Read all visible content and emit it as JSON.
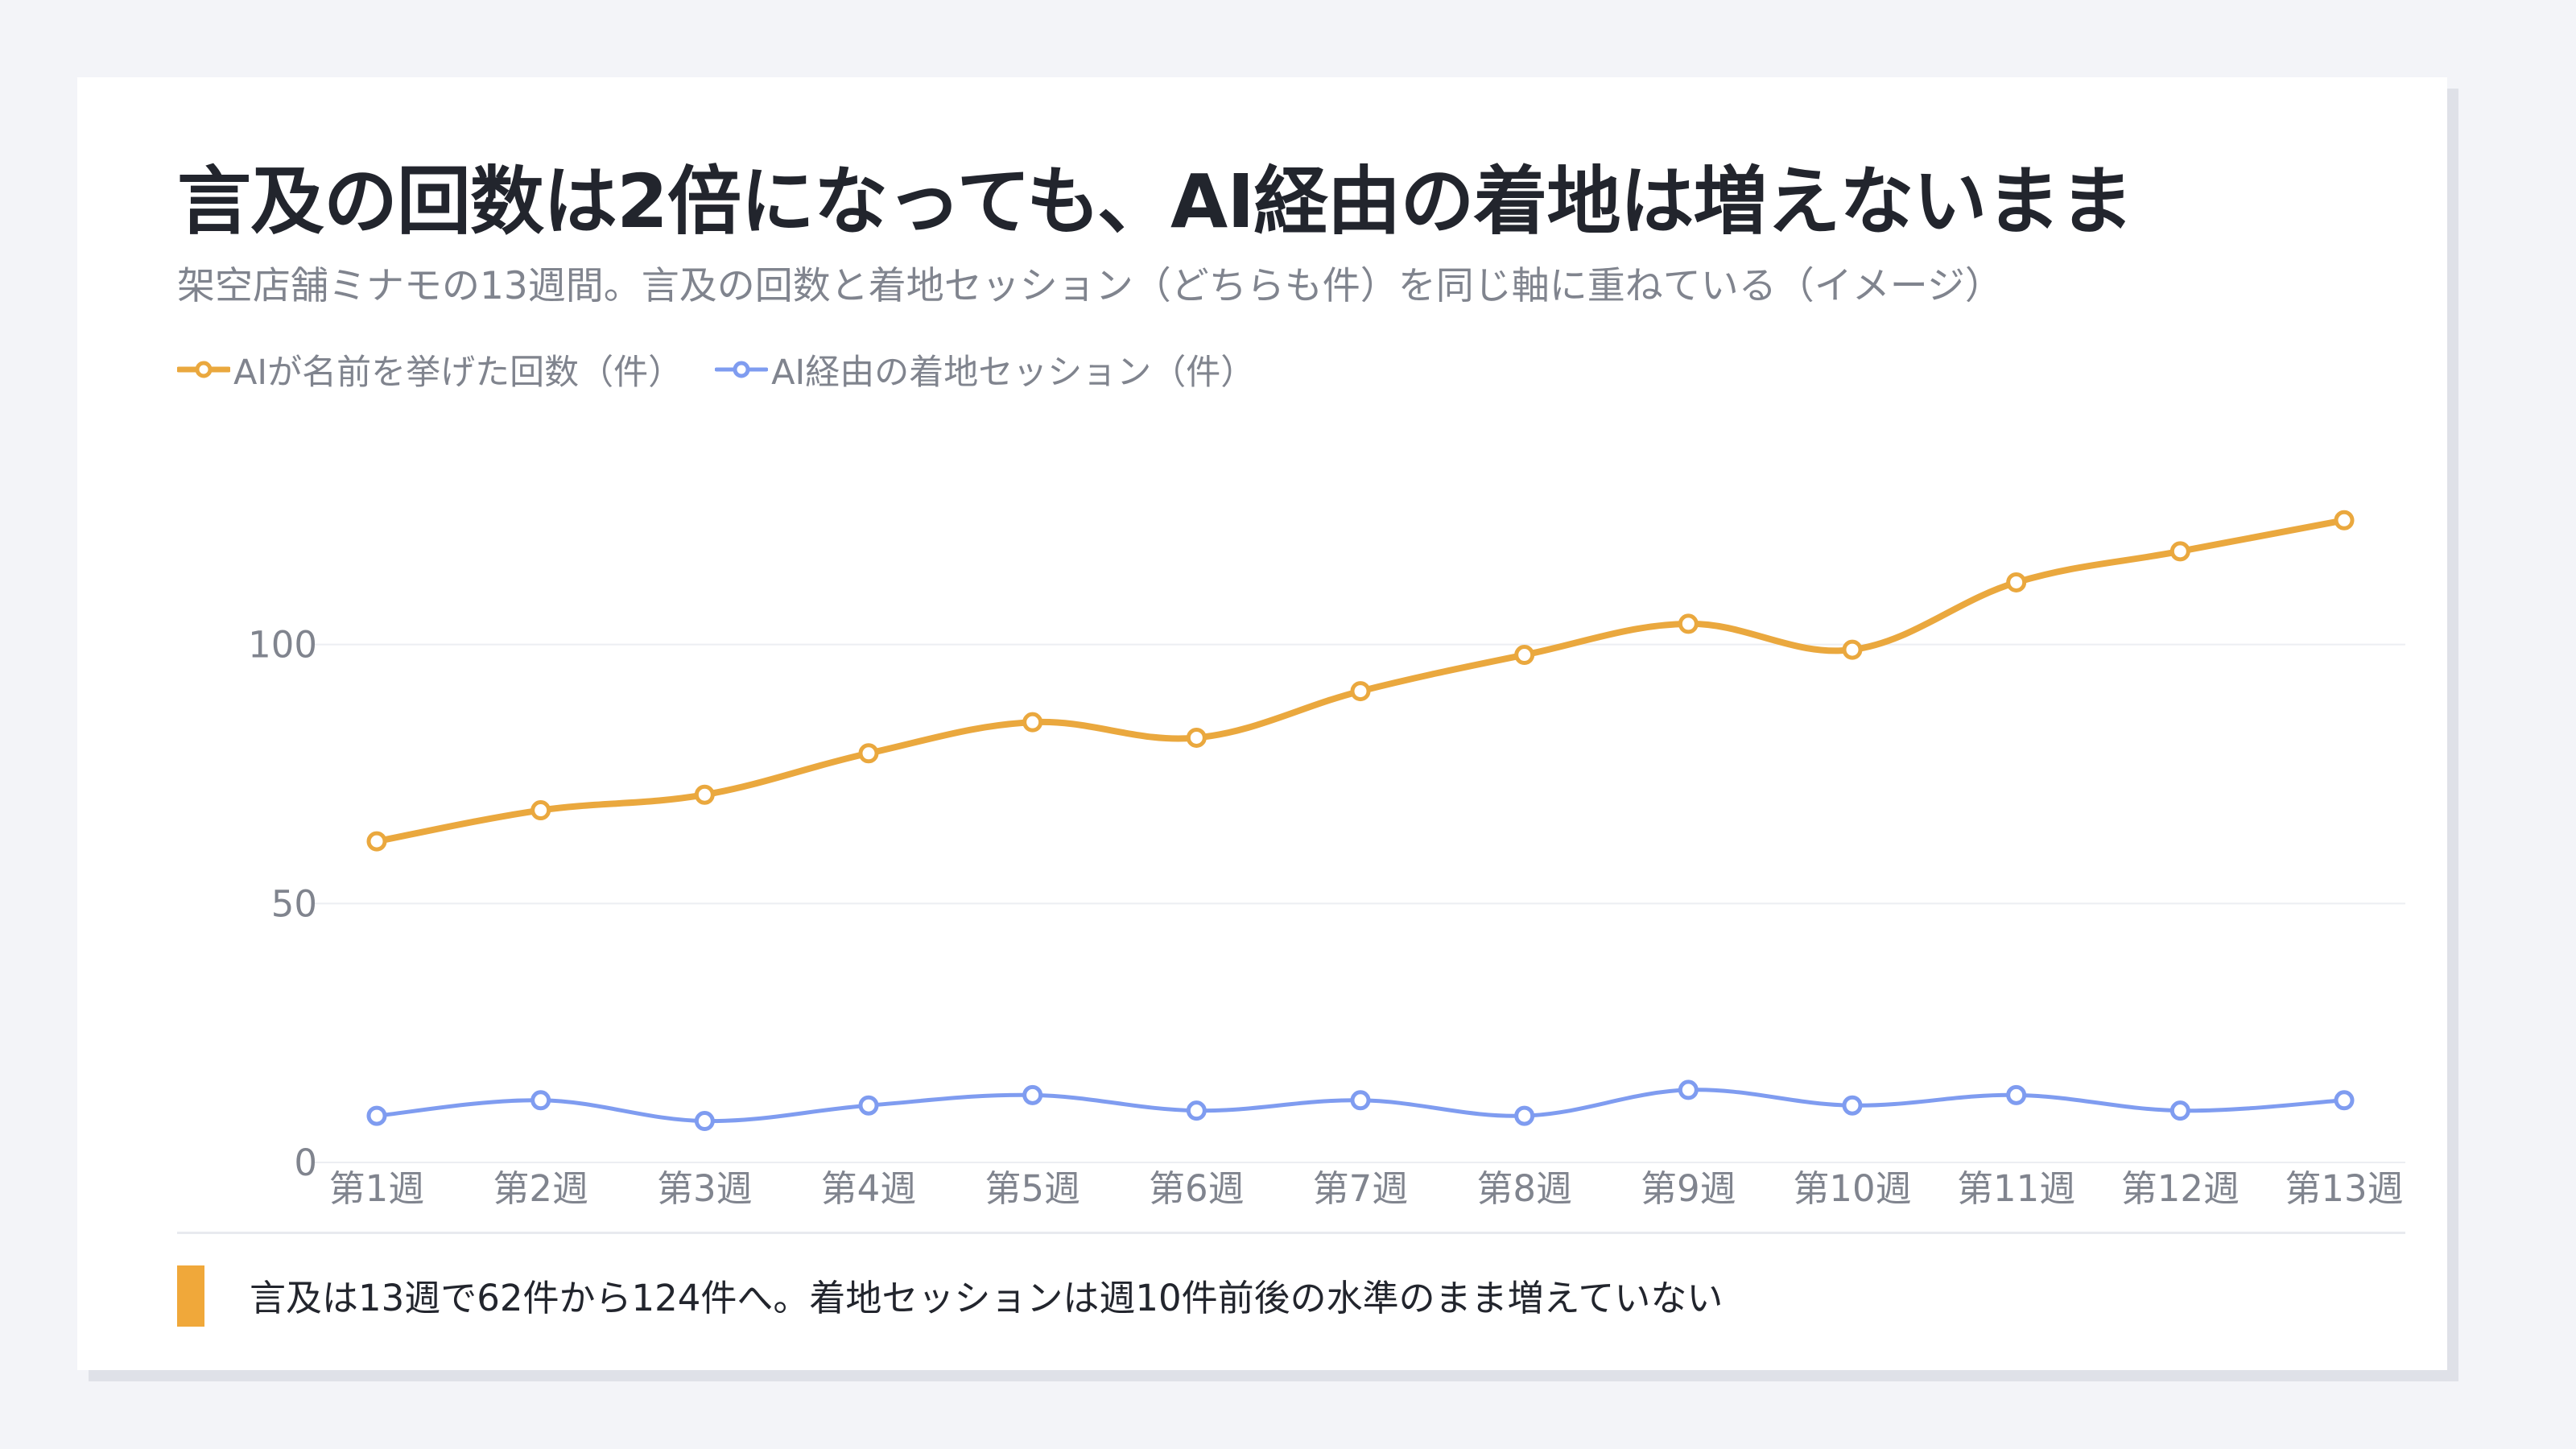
{
  "header": {
    "title": "言及の回数は2倍になっても、AI経由の着地は増えないまま",
    "subtitle": "架空店舗ミナモの13週間。言及の回数と着地セッション（どちらも件）を同じ軸に重ねている（イメージ）"
  },
  "colors": {
    "mentions": "#eaa83e",
    "landings": "#7f9cf0",
    "grid": "#eceef2",
    "axis_text": "#80848e"
  },
  "chart_data": {
    "type": "line",
    "categories": [
      "第1週",
      "第2週",
      "第3週",
      "第4週",
      "第5週",
      "第6週",
      "第7週",
      "第8週",
      "第9週",
      "第10週",
      "第11週",
      "第12週",
      "第13週"
    ],
    "series": [
      {
        "name": "AIが名前を挙げた回数（件）",
        "values": [
          62,
          68,
          71,
          79,
          85,
          82,
          91,
          98,
          104,
          99,
          112,
          118,
          124
        ]
      },
      {
        "name": "AI経由の着地セッション（件）",
        "values": [
          9,
          12,
          8,
          11,
          13,
          10,
          12,
          9,
          14,
          11,
          13,
          10,
          12
        ]
      }
    ],
    "yticks": [
      0,
      50,
      100
    ],
    "ylim": [
      0,
      120
    ],
    "grid": true,
    "legend": "top-left",
    "smooth": true
  },
  "footer": {
    "note": "言及は13週で62件から124件へ。着地セッションは週10件前後の水準のまま増えていない"
  }
}
